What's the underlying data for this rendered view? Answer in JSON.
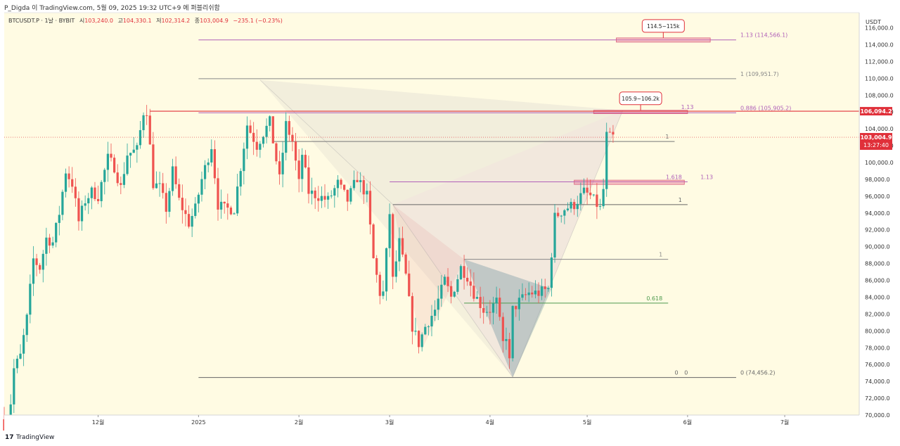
{
  "header": {
    "publisher_line": "P_Digda 이 TradingView.com, 5월 09, 2025 19:32 UTC+9 에 퍼블리쉬함",
    "symbol_line": "BTCUSDT.P · 1날 · BYBIT",
    "ohlc": [
      {
        "label": "시",
        "value": "103,240.0"
      },
      {
        "label": "고",
        "value": "104,330.1"
      },
      {
        "label": "저",
        "value": "102,314.2"
      },
      {
        "label": "종",
        "value": "103,004.9"
      }
    ],
    "change": "−235.1 (−0.23%)"
  },
  "footer": {
    "brand": "TradingView",
    "logo_mark": "17"
  },
  "chart_data": {
    "type": "candlestick",
    "currency": "USDT",
    "ylim": [
      70000,
      117800
    ],
    "y_ticks": [
      70000,
      72000,
      74000,
      76000,
      78000,
      80000,
      82000,
      84000,
      86000,
      88000,
      90000,
      92000,
      94000,
      96000,
      98000,
      100000,
      102000,
      104000,
      106000,
      108000,
      110000,
      112000,
      114000,
      116000
    ],
    "y_tick_labels": [
      "70,000.0",
      "72,000.0",
      "74,000.0",
      "76,000.0",
      "78,000.0",
      "80,000.0",
      "82,000.0",
      "84,000.0",
      "86,000.0",
      "88,000.0",
      "90,000.0",
      "92,000.0",
      "94,000.0",
      "96,000.0",
      "98,000.0",
      "100,000.0",
      "102,000.0",
      "104,000.0",
      "106,000.0",
      "108,000.0",
      "110,000.0",
      "112,000.0",
      "114,000.0",
      "116,000.0"
    ],
    "xlim": [
      "2024-11-02",
      "2025-07-24"
    ],
    "x_ticks": [
      {
        "date": "2024-12-01",
        "label": "12월"
      },
      {
        "date": "2025-01-01",
        "label": "2025"
      },
      {
        "date": "2025-02-01",
        "label": "2월"
      },
      {
        "date": "2025-03-01",
        "label": "3월"
      },
      {
        "date": "2025-04-01",
        "label": "4월"
      },
      {
        "date": "2025-05-01",
        "label": "5월"
      },
      {
        "date": "2025-06-01",
        "label": "6월"
      },
      {
        "date": "2025-07-01",
        "label": "7월"
      }
    ],
    "price_path": [
      [
        "2024-11-02",
        69500
      ],
      [
        "2024-11-04",
        67500
      ],
      [
        "2024-11-06",
        75500
      ],
      [
        "2024-11-08",
        77000
      ],
      [
        "2024-11-10",
        81500
      ],
      [
        "2024-11-12",
        88500
      ],
      [
        "2024-11-14",
        87500
      ],
      [
        "2024-11-16",
        91000
      ],
      [
        "2024-11-18",
        90500
      ],
      [
        "2024-11-20",
        94000
      ],
      [
        "2024-11-22",
        99000
      ],
      [
        "2024-11-24",
        97500
      ],
      [
        "2024-11-26",
        93000
      ],
      [
        "2024-11-28",
        95500
      ],
      [
        "2024-11-30",
        96500
      ],
      [
        "2024-12-02",
        96000
      ],
      [
        "2024-12-05",
        100500
      ],
      [
        "2024-12-07",
        99500
      ],
      [
        "2024-12-09",
        97000
      ],
      [
        "2024-12-11",
        101000
      ],
      [
        "2024-12-14",
        101500
      ],
      [
        "2024-12-16",
        106000
      ],
      [
        "2024-12-17",
        106200
      ],
      [
        "2024-12-19",
        97500
      ],
      [
        "2024-12-21",
        97000
      ],
      [
        "2024-12-23",
        94500
      ],
      [
        "2024-12-25",
        99000
      ],
      [
        "2024-12-27",
        95500
      ],
      [
        "2024-12-30",
        92800
      ],
      [
        "2025-01-01",
        94500
      ],
      [
        "2025-01-03",
        98000
      ],
      [
        "2025-01-06",
        102000
      ],
      [
        "2025-01-08",
        95000
      ],
      [
        "2025-01-10",
        94500
      ],
      [
        "2025-01-13",
        94500
      ],
      [
        "2025-01-15",
        99500
      ],
      [
        "2025-01-17",
        104500
      ],
      [
        "2025-01-20",
        102000
      ],
      [
        "2025-01-22",
        103500
      ],
      [
        "2025-01-24",
        104800
      ],
      [
        "2025-01-27",
        98000
      ],
      [
        "2025-01-29",
        104500
      ],
      [
        "2025-01-31",
        102500
      ],
      [
        "2025-02-02",
        97500
      ],
      [
        "2025-02-03",
        101000
      ],
      [
        "2025-02-05",
        96500
      ],
      [
        "2025-02-08",
        96000
      ],
      [
        "2025-02-11",
        95500
      ],
      [
        "2025-02-14",
        97500
      ],
      [
        "2025-02-17",
        95500
      ],
      [
        "2025-02-20",
        98200
      ],
      [
        "2025-02-23",
        96000
      ],
      [
        "2025-02-25",
        88500
      ],
      [
        "2025-02-27",
        84500
      ],
      [
        "2025-02-28",
        84500
      ],
      [
        "2025-03-02",
        94000
      ],
      [
        "2025-03-03",
        86000
      ],
      [
        "2025-03-05",
        90500
      ],
      [
        "2025-03-07",
        86500
      ],
      [
        "2025-03-09",
        80500
      ],
      [
        "2025-03-11",
        78500
      ],
      [
        "2025-03-13",
        80500
      ],
      [
        "2025-03-16",
        82500
      ],
      [
        "2025-03-19",
        86000
      ],
      [
        "2025-03-21",
        84000
      ],
      [
        "2025-03-24",
        87500
      ],
      [
        "2025-03-26",
        86500
      ],
      [
        "2025-03-28",
        84500
      ],
      [
        "2025-03-31",
        82500
      ],
      [
        "2025-04-02",
        82500
      ],
      [
        "2025-04-04",
        83500
      ],
      [
        "2025-04-06",
        78500
      ],
      [
        "2025-04-07",
        79500
      ],
      [
        "2025-04-08",
        76300
      ],
      [
        "2025-04-09",
        82500
      ],
      [
        "2025-04-11",
        83500
      ],
      [
        "2025-04-14",
        84500
      ],
      [
        "2025-04-17",
        84500
      ],
      [
        "2025-04-20",
        85000
      ],
      [
        "2025-04-22",
        93500
      ],
      [
        "2025-04-25",
        94500
      ],
      [
        "2025-04-28",
        95000
      ],
      [
        "2025-05-01",
        96500
      ],
      [
        "2025-05-03",
        96000
      ],
      [
        "2025-05-06",
        94500
      ],
      [
        "2025-05-07",
        96800
      ],
      [
        "2025-05-08",
        103200
      ],
      [
        "2025-05-09",
        103000
      ]
    ],
    "levels": [
      {
        "price": 114566.1,
        "x_from": "2025-01-01",
        "x_to": "2025-06-16",
        "color": "#b060b8",
        "label": "1.13 (114,566.1)"
      },
      {
        "price": 109951.7,
        "x_from": "2025-01-01",
        "x_to": "2025-06-16",
        "color": "#888888",
        "label": "1 (109,951.7)"
      },
      {
        "price": 105905.2,
        "x_from": "2025-01-01",
        "x_to": "2025-06-16",
        "color": "#b060b8",
        "label": "0.886 (105,905.2)"
      },
      {
        "price": 74456.2,
        "x_from": "2025-01-01",
        "x_to": "2025-06-16",
        "color": "#666666",
        "label": "0 (74,456.2)"
      },
      {
        "price": 102500,
        "x_from": "2025-01-24",
        "x_to": "2025-05-28",
        "color": "#777777",
        "label": "1"
      },
      {
        "price": 97700,
        "x_from": "2025-03-01",
        "x_to": "2025-06-01",
        "color": "#b060b8",
        "label": "1.618"
      },
      {
        "price": 95000,
        "x_from": "2025-03-02",
        "x_to": "2025-06-01",
        "color": "#666666",
        "label": "1"
      },
      {
        "price": 88500,
        "x_from": "2025-03-24",
        "x_to": "2025-05-26",
        "color": "#888888",
        "label": "1"
      },
      {
        "price": 83300,
        "x_from": "2025-03-24",
        "x_to": "2025-05-26",
        "color": "#4e9a4e",
        "label": "0.618"
      }
    ],
    "level_text_extra": [
      {
        "text": "1.13",
        "price": 106000,
        "at": "2025-05-30",
        "color": "#b060b8"
      },
      {
        "text": "1.13",
        "price": 97700,
        "at": "2025-06-05",
        "color": "#b060b8"
      },
      {
        "text": "0",
        "price": 74456.2,
        "at": "2025-05-28",
        "color": "#666666"
      },
      {
        "text": "0",
        "price": 74456.2,
        "at": "2025-05-31",
        "color": "#666666"
      }
    ],
    "zones": [
      {
        "price_low": 114300,
        "price_high": 114800,
        "x_from": "2025-05-10",
        "x_to": "2025-06-08",
        "label": "114.5~115k"
      },
      {
        "price_low": 105800,
        "price_high": 106200,
        "x_from": "2025-05-03",
        "x_to": "2025-06-01",
        "label": "105.9~106.2k"
      },
      {
        "price_low": 97400,
        "price_high": 97900,
        "x_from": "2025-04-27",
        "x_to": "2025-05-31",
        "label": ""
      }
    ],
    "resistance": {
      "price": 106094.2,
      "x_from": "2024-12-17",
      "color": "#e0303a",
      "label": "106,094.2"
    },
    "last_price": {
      "price": 103004.9,
      "label": "103,004.9",
      "countdown": "13:27:40"
    },
    "pattern_points": [
      [
        "2025-01-20",
        109800
      ],
      [
        "2025-03-02",
        95000
      ],
      [
        "2025-04-08",
        74500
      ],
      [
        "2025-05-12",
        106200
      ]
    ],
    "colors": {
      "up": "#26a69a",
      "down": "#ef5350",
      "bg": "#fffbe3"
    }
  }
}
